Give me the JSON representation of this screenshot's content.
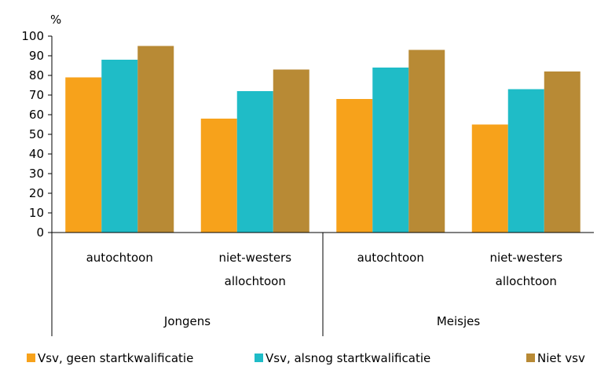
{
  "chart_data": {
    "type": "bar",
    "ylabel": "%",
    "ylim": [
      0,
      100
    ],
    "yticks": [
      0,
      10,
      20,
      30,
      40,
      50,
      60,
      70,
      80,
      90,
      100
    ],
    "groups": [
      {
        "label": "Jongens",
        "categories": [
          {
            "label_lines": [
              "autochtoon"
            ],
            "values": [
              79,
              88,
              95
            ]
          },
          {
            "label_lines": [
              "niet-westers",
              "allochtoon"
            ],
            "values": [
              58,
              72,
              83
            ]
          }
        ]
      },
      {
        "label": "Meisjes",
        "categories": [
          {
            "label_lines": [
              "autochtoon"
            ],
            "values": [
              68,
              84,
              93
            ]
          },
          {
            "label_lines": [
              "niet-westers",
              "allochtoon"
            ],
            "values": [
              55,
              73,
              82
            ]
          }
        ]
      }
    ],
    "series": [
      {
        "name": "Vsv, geen startkwalificatie",
        "color": "#f7a21b"
      },
      {
        "name": "Vsv, alsnog startkwalificatie",
        "color": "#1fbcc7"
      },
      {
        "name": "Niet vsv",
        "color": "#b88a35"
      }
    ],
    "legend_position": "bottom",
    "grid": false
  }
}
